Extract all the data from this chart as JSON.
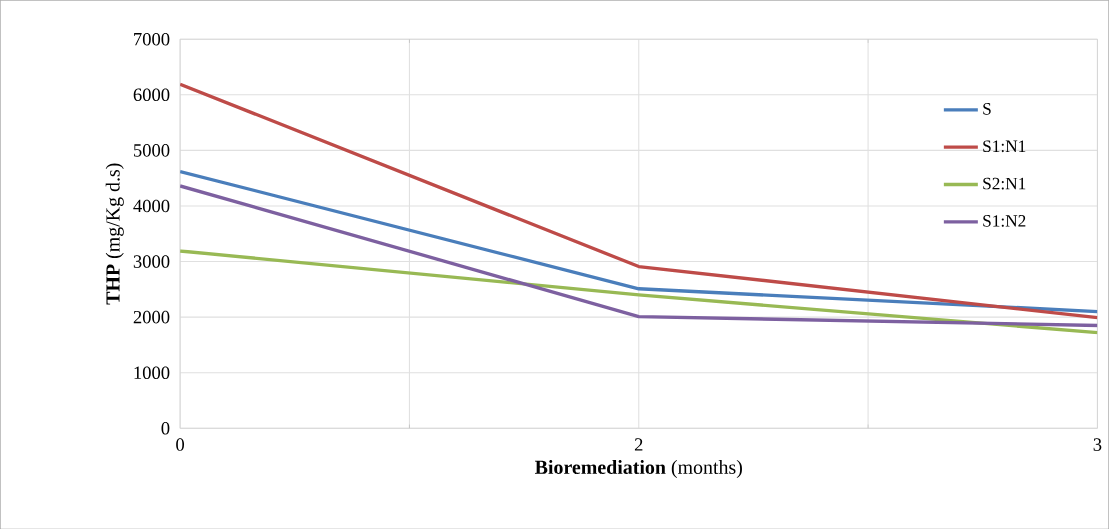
{
  "chart_data": {
    "type": "line",
    "xlabel": "**Bioremediation** (months)",
    "ylabel": "**THP**  (mg/Kg d.s)",
    "categories": [
      "0",
      "2",
      "3"
    ],
    "series": [
      {
        "name": "S",
        "color": "#4a7ebb",
        "values": [
          4620,
          2510,
          2100
        ]
      },
      {
        "name": "S1:N1",
        "color": "#be4b48",
        "values": [
          6190,
          2910,
          1990
        ]
      },
      {
        "name": "S2:N1",
        "color": "#98b954",
        "values": [
          3190,
          2400,
          1720
        ]
      },
      {
        "name": "S1:N2",
        "color": "#7d60a0",
        "values": [
          4360,
          2010,
          1850
        ]
      }
    ],
    "ylim": [
      0,
      7000
    ],
    "yticks": [
      0,
      1000,
      2000,
      3000,
      4000,
      5000,
      6000,
      7000
    ],
    "grid": true,
    "legend": "top right",
    "marker": "none",
    "line_style": "solid"
  }
}
